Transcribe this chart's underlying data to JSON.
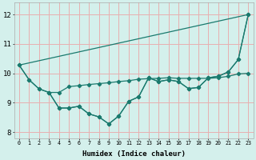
{
  "xlabel": "Humidex (Indice chaleur)",
  "bg_color": "#d4f0ec",
  "grid_color": "#e8b0b0",
  "line_color": "#1a7a6e",
  "xlim": [
    -0.5,
    23.5
  ],
  "ylim": [
    7.8,
    12.4
  ],
  "yticks": [
    8,
    9,
    10,
    11,
    12
  ],
  "xticks": [
    0,
    1,
    2,
    3,
    4,
    5,
    6,
    7,
    8,
    9,
    10,
    11,
    12,
    13,
    14,
    15,
    16,
    17,
    18,
    19,
    20,
    21,
    22,
    23
  ],
  "series1_nomarker": {
    "x": [
      0,
      23
    ],
    "y": [
      10.28,
      12.0
    ]
  },
  "series2": {
    "x": [
      0,
      1,
      2,
      3,
      4,
      5,
      6,
      7,
      8,
      9,
      10,
      11,
      12,
      13,
      14,
      15,
      16,
      17,
      18,
      19,
      20,
      21,
      22,
      23
    ],
    "y": [
      10.28,
      9.78,
      9.47,
      9.35,
      9.35,
      9.55,
      9.58,
      9.62,
      9.65,
      9.68,
      9.72,
      9.75,
      9.8,
      9.82,
      9.83,
      9.85,
      9.83,
      9.83,
      9.83,
      9.83,
      9.85,
      9.9,
      9.98,
      10.0
    ]
  },
  "series3": {
    "x": [
      0,
      1,
      2,
      3,
      4,
      5,
      6,
      7,
      8,
      9,
      10,
      11,
      12,
      13,
      14,
      15,
      16,
      17,
      18,
      19,
      20,
      21,
      22,
      23
    ],
    "y": [
      10.28,
      9.78,
      9.47,
      9.35,
      8.82,
      8.82,
      8.88,
      8.62,
      8.52,
      8.28,
      8.55,
      9.05,
      9.2,
      9.85,
      9.72,
      9.78,
      9.72,
      9.48,
      9.52,
      9.85,
      9.9,
      10.05,
      10.47,
      12.0
    ]
  },
  "series4": {
    "x": [
      3,
      4,
      5,
      6,
      7,
      8,
      9,
      10,
      11,
      12,
      13,
      14,
      15,
      16,
      17,
      18,
      19,
      20,
      21,
      22,
      23
    ],
    "y": [
      9.35,
      8.82,
      8.82,
      8.88,
      8.62,
      8.52,
      8.28,
      8.55,
      9.05,
      9.2,
      9.85,
      9.72,
      9.78,
      9.72,
      9.48,
      9.52,
      9.85,
      9.9,
      10.05,
      10.47,
      12.0
    ]
  }
}
